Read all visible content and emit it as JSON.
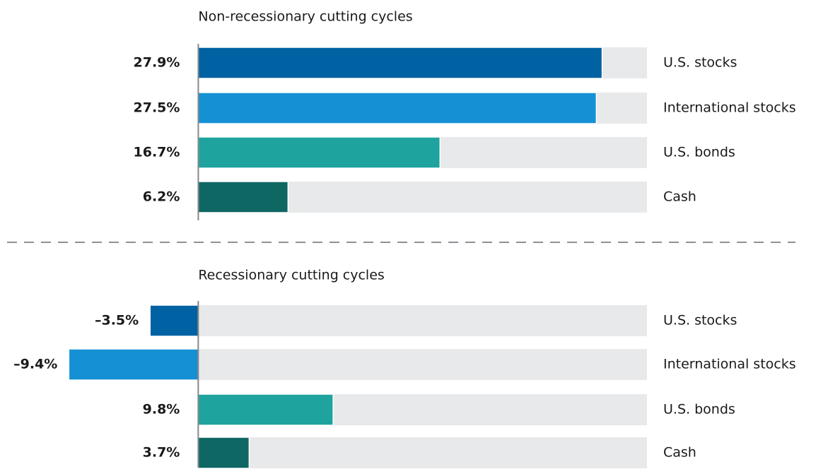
{
  "chart_data": [
    {
      "type": "bar",
      "title": "Non-recessionary cutting cycles",
      "categories": [
        "U.S. stocks",
        "International stocks",
        "U.S. bonds",
        "Cash"
      ],
      "values": [
        27.9,
        27.5,
        16.7,
        6.2
      ],
      "value_labels": [
        "27.9%",
        "27.5%",
        "16.7%",
        "6.2%"
      ],
      "colors": [
        "#0061a3",
        "#1590d4",
        "#1ea39e",
        "#0f6763"
      ],
      "xlim": [
        -13.7,
        31
      ]
    },
    {
      "type": "bar",
      "title": "Recessionary cutting cycles",
      "categories": [
        "U.S. stocks",
        "International stocks",
        "U.S. bonds",
        "Cash"
      ],
      "values": [
        -3.5,
        -9.4,
        9.8,
        3.7
      ],
      "value_labels": [
        "–3.5%",
        "–9.4%",
        "9.8%",
        "3.7%"
      ],
      "colors": [
        "#0061a3",
        "#1590d4",
        "#1ea39e",
        "#0f6763"
      ],
      "xlim": [
        -14.4,
        32.6
      ]
    }
  ]
}
